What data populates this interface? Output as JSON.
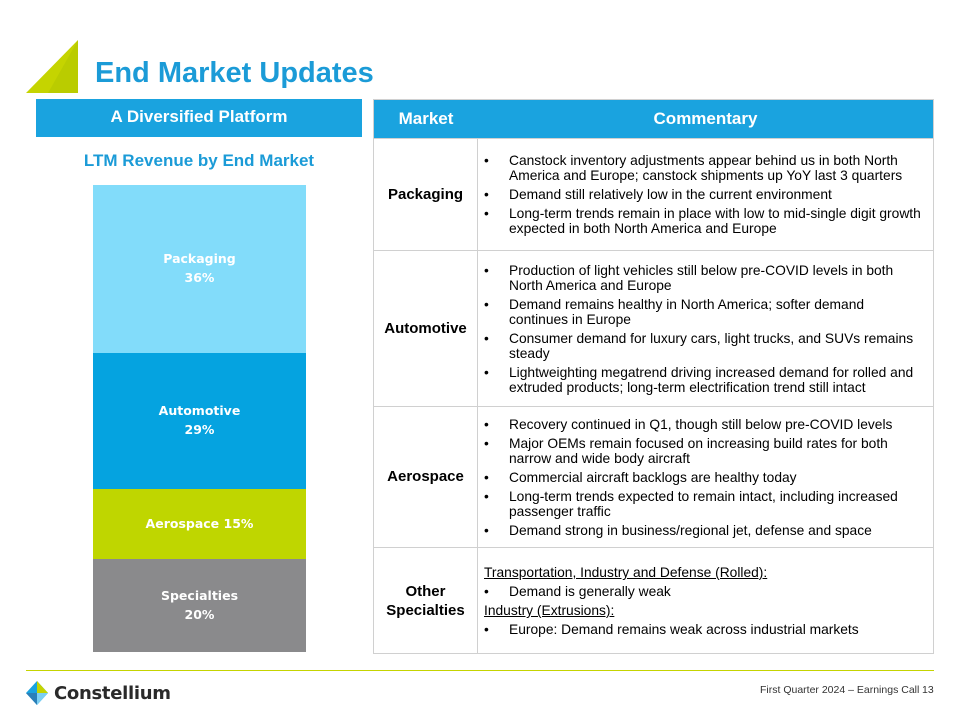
{
  "title": "End Market Updates",
  "left_panel": {
    "header": "A Diversified Platform",
    "subtitle": "LTM Revenue by End Market"
  },
  "chart_data": {
    "type": "bar",
    "stacked": true,
    "categories": [
      "Packaging",
      "Automotive",
      "Aerospace",
      "Specialties"
    ],
    "values": [
      36,
      29,
      15,
      20
    ],
    "labels": [
      "Packaging\n36%",
      "Automotive\n29%",
      "Aerospace 15%",
      "Specialties\n20%"
    ],
    "colors": [
      "#82dcfa",
      "#05a3e0",
      "#bfd600",
      "#8a8a8c"
    ],
    "unit": "%"
  },
  "table": {
    "headers": {
      "market": "Market",
      "commentary": "Commentary"
    },
    "rows": [
      {
        "market": "Packaging",
        "items": [
          {
            "type": "bullet",
            "text": "Canstock inventory adjustments appear behind us in both North America and Europe; canstock shipments up YoY last 3 quarters"
          },
          {
            "type": "bullet",
            "text": "Demand still relatively low in the current environment"
          },
          {
            "type": "bullet",
            "text": "Long-term trends remain in place with low to mid-single digit growth expected in both North America and Europe"
          }
        ]
      },
      {
        "market": "Automotive",
        "items": [
          {
            "type": "bullet",
            "text": "Production of light vehicles still below pre-COVID levels in both North America and Europe"
          },
          {
            "type": "bullet",
            "text": "Demand remains healthy in North America; softer demand continues in Europe"
          },
          {
            "type": "bullet",
            "text": "Consumer demand for luxury cars, light trucks, and SUVs remains steady"
          },
          {
            "type": "bullet",
            "text": "Lightweighting megatrend driving increased demand for rolled and extruded products; long-term electrification trend still intact"
          }
        ]
      },
      {
        "market": "Aerospace",
        "items": [
          {
            "type": "bullet",
            "text": "Recovery continued in Q1, though still below pre-COVID levels"
          },
          {
            "type": "bullet",
            "text": "Major OEMs remain focused on increasing build rates for both narrow and wide body aircraft"
          },
          {
            "type": "bullet",
            "text": "Commercial aircraft backlogs are healthy today"
          },
          {
            "type": "bullet",
            "text": "Long-term trends expected to remain intact, including increased passenger traffic"
          },
          {
            "type": "bullet",
            "text": "Demand strong in business/regional jet, defense and space"
          }
        ]
      },
      {
        "market": "Other\nSpecialties",
        "items": [
          {
            "type": "heading",
            "text": "Transportation, Industry and Defense (Rolled):"
          },
          {
            "type": "bullet",
            "text": "Demand is generally weak"
          },
          {
            "type": "heading",
            "text": "Industry (Extrusions):"
          },
          {
            "type": "bullet",
            "text": "Europe: Demand remains weak across industrial markets"
          }
        ]
      }
    ]
  },
  "footer": {
    "logo_text": "Constellium",
    "event": "First Quarter 2024 – Earnings Call",
    "page_number": "13"
  },
  "colors": {
    "accent_blue": "#1aa3df",
    "accent_green": "#c5d400"
  }
}
